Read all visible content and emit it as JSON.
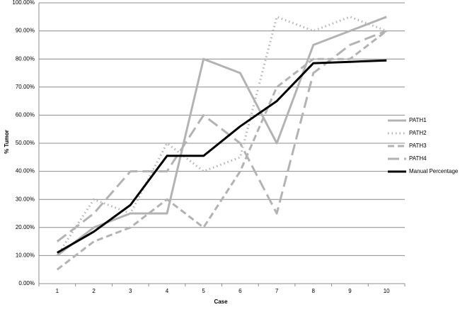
{
  "chart_data": {
    "type": "line",
    "x_label": "Case",
    "y_label": "% Tumor",
    "categories": [
      "1",
      "2",
      "3",
      "4",
      "5",
      "6",
      "7",
      "8",
      "9",
      "10"
    ],
    "series": [
      {
        "name": "PATH1",
        "color": "#b3b3b3",
        "line_style": "solid",
        "values": [
          10,
          20,
          25,
          25,
          80,
          75,
          50,
          85,
          90,
          95
        ]
      },
      {
        "name": "PATH2",
        "color": "#b3b3b3",
        "line_style": "dotted",
        "values": [
          10,
          30,
          25,
          50,
          40,
          45,
          95,
          90,
          95,
          90
        ]
      },
      {
        "name": "PATH3",
        "color": "#b3b3b3",
        "line_style": "dashed",
        "values": [
          5,
          15,
          20,
          30,
          20,
          40,
          70,
          80,
          80,
          90
        ]
      },
      {
        "name": "PATH4",
        "color": "#b3b3b3",
        "line_style": "longdash",
        "values": [
          15,
          25,
          40,
          40,
          60,
          50,
          25,
          75,
          85,
          90
        ]
      },
      {
        "name": "Manual Percentage",
        "color": "#000000",
        "line_style": "solid",
        "values": [
          11,
          18.5,
          28,
          45.5,
          45.5,
          56,
          65,
          78.5,
          79,
          79.5
        ]
      }
    ],
    "ylim": [
      0,
      100
    ],
    "yticks": [
      {
        "value": 0,
        "label": "0.00%"
      },
      {
        "value": 10,
        "label": "10.00%"
      },
      {
        "value": 20,
        "label": "20.00%"
      },
      {
        "value": 30,
        "label": "30.00%"
      },
      {
        "value": 40,
        "label": "40.00%"
      },
      {
        "value": 50,
        "label": "50.00%"
      },
      {
        "value": 60,
        "label": "60.00%"
      },
      {
        "value": 70,
        "label": "70.00%"
      },
      {
        "value": 80,
        "label": "80.00%"
      },
      {
        "value": 90,
        "label": "90.00%"
      },
      {
        "value": 100,
        "label": "100.00%"
      }
    ],
    "grid": true,
    "legend": "right"
  }
}
